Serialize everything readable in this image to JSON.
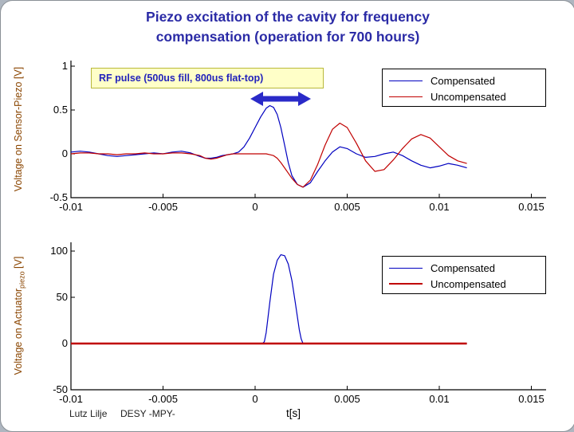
{
  "title": {
    "line1": "Piezo excitation of the cavity for frequency",
    "line2": "compensation (operation for 700 hours)"
  },
  "annotation": {
    "rf_pulse_label": "RF pulse (500us fill, 800us flat-top)"
  },
  "footer": {
    "author": "Lutz Lilje",
    "institute": "DESY -MPY-",
    "xaxis_label": "t[s]"
  },
  "colors": {
    "compensated": "#0000c0",
    "uncompensated": "#c00000",
    "axis": "#000000",
    "ylabel_text": "#8a4500",
    "title_text": "#2b2ba6",
    "annotation_bg": "#ffffc8",
    "arrow": "#2a2ac8"
  },
  "chart_data": [
    {
      "type": "line",
      "ylabel": "Voltage on Sensor-Piezo [V]",
      "xlabel": "",
      "xlim": [
        -0.01,
        0.0158
      ],
      "ylim": [
        -0.5,
        1
      ],
      "xticks": [
        -0.01,
        -0.005,
        0,
        0.005,
        0.01,
        0.015
      ],
      "xtick_labels": [
        "-0.01",
        "-0.005",
        "0",
        "0.005",
        "0.01",
        "0.015"
      ],
      "yticks": [
        1,
        0.5,
        0,
        -0.5
      ],
      "ytick_labels": [
        "1",
        "0.5",
        "0",
        "-0.5"
      ],
      "legend": [
        "Compensated",
        "Uncompensated"
      ],
      "legend_position": "top-right",
      "grid": false,
      "series": [
        {
          "name": "Compensated",
          "color": "#0000c0",
          "width": 1.2,
          "x": [
            -0.01,
            -0.0095,
            -0.009,
            -0.0085,
            -0.008,
            -0.0075,
            -0.007,
            -0.0065,
            -0.006,
            -0.0055,
            -0.005,
            -0.0045,
            -0.004,
            -0.0035,
            -0.003,
            -0.0027,
            -0.0024,
            -0.0021,
            -0.0018,
            -0.0015,
            -0.0012,
            -0.0009,
            -0.0006,
            -0.0003,
            0,
            0.0003,
            0.0006,
            0.0008,
            0.001,
            0.0012,
            0.0014,
            0.0016,
            0.0018,
            0.002,
            0.0023,
            0.0026,
            0.003,
            0.0034,
            0.0038,
            0.0042,
            0.0046,
            0.005,
            0.0055,
            0.006,
            0.0065,
            0.007,
            0.0075,
            0.008,
            0.0085,
            0.009,
            0.0095,
            0.01,
            0.0105,
            0.011,
            0.0115
          ],
          "y": [
            0.02,
            0.03,
            0.02,
            0,
            -0.02,
            -0.03,
            -0.02,
            -0.01,
            0,
            0.01,
            0,
            0.02,
            0.03,
            0.01,
            -0.03,
            -0.05,
            -0.05,
            -0.04,
            -0.02,
            -0.01,
            0,
            0.02,
            0.08,
            0.18,
            0.3,
            0.42,
            0.52,
            0.55,
            0.53,
            0.45,
            0.3,
            0.1,
            -0.1,
            -0.25,
            -0.35,
            -0.38,
            -0.33,
            -0.2,
            -0.08,
            0.02,
            0.08,
            0.06,
            0,
            -0.04,
            -0.03,
            0,
            0.02,
            -0.02,
            -0.08,
            -0.13,
            -0.16,
            -0.14,
            -0.11,
            -0.13,
            -0.16
          ]
        },
        {
          "name": "Uncompensated",
          "color": "#c00000",
          "width": 1.2,
          "x": [
            -0.01,
            -0.0095,
            -0.009,
            -0.0085,
            -0.008,
            -0.0075,
            -0.007,
            -0.0065,
            -0.006,
            -0.0055,
            -0.005,
            -0.0045,
            -0.004,
            -0.0035,
            -0.003,
            -0.0027,
            -0.0024,
            -0.0021,
            -0.0018,
            -0.0015,
            -0.0012,
            -0.0009,
            -0.0006,
            -0.0003,
            0,
            0.0003,
            0.0006,
            0.0008,
            0.001,
            0.0012,
            0.0014,
            0.0016,
            0.0018,
            0.002,
            0.0023,
            0.0026,
            0.003,
            0.0034,
            0.0038,
            0.0042,
            0.0046,
            0.005,
            0.0055,
            0.006,
            0.0065,
            0.007,
            0.0075,
            0.008,
            0.0085,
            0.009,
            0.0095,
            0.01,
            0.0105,
            0.011,
            0.0115
          ],
          "y": [
            0,
            0.01,
            0.01,
            0,
            0,
            -0.01,
            0,
            0,
            0.01,
            0,
            0,
            0.01,
            0.01,
            0,
            -0.02,
            -0.05,
            -0.06,
            -0.05,
            -0.03,
            -0.01,
            0,
            0,
            0,
            0,
            0,
            0,
            0,
            -0.01,
            -0.02,
            -0.05,
            -0.1,
            -0.16,
            -0.22,
            -0.28,
            -0.35,
            -0.38,
            -0.3,
            -0.12,
            0.1,
            0.28,
            0.35,
            0.3,
            0.12,
            -0.08,
            -0.2,
            -0.18,
            -0.07,
            0.06,
            0.17,
            0.22,
            0.18,
            0.08,
            -0.02,
            -0.08,
            -0.11
          ]
        }
      ]
    },
    {
      "type": "line",
      "ylabel_main": "Voltage on Actuator",
      "ylabel_sub": "piezo",
      "ylabel_unit": " [V]",
      "xlabel": "t[s]",
      "xlim": [
        -0.01,
        0.0158
      ],
      "ylim": [
        -50,
        100
      ],
      "xticks": [
        -0.01,
        -0.005,
        0,
        0.005,
        0.01,
        0.015
      ],
      "xtick_labels": [
        "-0.01",
        "-0.005",
        "0",
        "0.005",
        "0.01",
        "0.015"
      ],
      "yticks": [
        100,
        50,
        0,
        -50
      ],
      "ytick_labels": [
        "100",
        "50",
        "0",
        "-50"
      ],
      "legend": [
        "Compensated",
        "Uncompensated"
      ],
      "legend_position": "top-right",
      "grid": false,
      "series": [
        {
          "name": "Compensated",
          "color": "#0000c0",
          "width": 1.2,
          "x": [
            -0.01,
            -0.008,
            -0.006,
            -0.004,
            -0.002,
            0,
            0.0004,
            0.0005,
            0.0006,
            0.0008,
            0.001,
            0.0012,
            0.0014,
            0.0016,
            0.0018,
            0.002,
            0.0022,
            0.0024,
            0.0025,
            0.0026,
            0.003,
            0.004,
            0.006,
            0.008,
            0.01,
            0.0115
          ],
          "y": [
            0,
            0,
            0,
            0,
            0,
            0,
            0,
            2,
            12,
            45,
            75,
            90,
            96,
            95,
            86,
            68,
            42,
            15,
            5,
            0,
            0,
            0,
            0,
            0,
            0,
            0
          ]
        },
        {
          "name": "Uncompensated",
          "color": "#c00000",
          "width": 2.4,
          "x": [
            -0.01,
            0.0115
          ],
          "y": [
            0,
            0
          ]
        }
      ]
    }
  ]
}
